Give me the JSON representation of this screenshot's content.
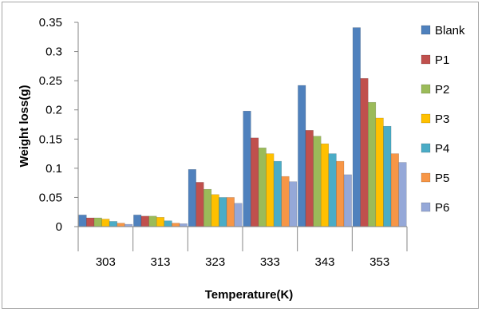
{
  "chart_data": {
    "type": "bar",
    "title": "",
    "xlabel": "Temperature(K)",
    "ylabel": "Weight loss(g)",
    "ylim": [
      0,
      0.35
    ],
    "yticks": [
      0,
      0.05,
      0.1,
      0.15,
      0.2,
      0.25,
      0.3,
      0.35
    ],
    "ytick_labels": [
      "0",
      "0.05",
      "0.1",
      "0.15",
      "0.2",
      "0.25",
      "0.3",
      "0.35"
    ],
    "grid": false,
    "legend_position": "right",
    "categories": [
      "303",
      "313",
      "323",
      "333",
      "343",
      "353"
    ],
    "series": [
      {
        "name": "Blank",
        "color": "#4f81bd",
        "values": [
          0.02,
          0.02,
          0.098,
          0.198,
          0.242,
          0.341
        ]
      },
      {
        "name": "P1",
        "color": "#c0504d",
        "values": [
          0.015,
          0.018,
          0.076,
          0.152,
          0.165,
          0.254
        ]
      },
      {
        "name": "P2",
        "color": "#9bbb59",
        "values": [
          0.015,
          0.018,
          0.064,
          0.135,
          0.155,
          0.213
        ]
      },
      {
        "name": "P3",
        "color": "#ffc000",
        "values": [
          0.013,
          0.016,
          0.055,
          0.125,
          0.142,
          0.186
        ]
      },
      {
        "name": "P4",
        "color": "#4bacc6",
        "values": [
          0.009,
          0.01,
          0.05,
          0.112,
          0.125,
          0.172
        ]
      },
      {
        "name": "P5",
        "color": "#f79646",
        "values": [
          0.006,
          0.006,
          0.05,
          0.086,
          0.112,
          0.125
        ]
      },
      {
        "name": "P6",
        "color": "#95a8d8",
        "values": [
          0.004,
          0.005,
          0.04,
          0.077,
          0.089,
          0.11
        ]
      }
    ]
  }
}
